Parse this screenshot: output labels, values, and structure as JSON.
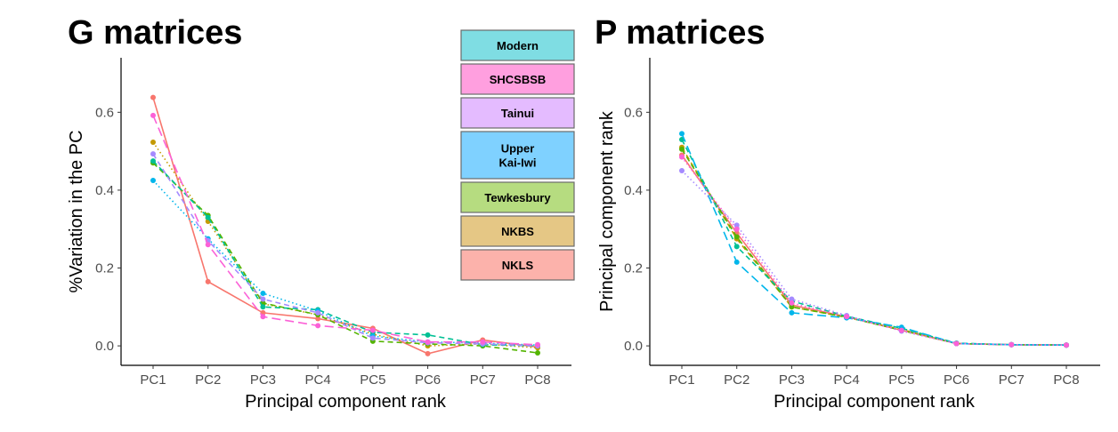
{
  "legend": {
    "entries": [
      {
        "label": "Modern",
        "color": "#7fdde3"
      },
      {
        "label": "SHCSBSB",
        "color": "#ff9fdf"
      },
      {
        "label": "Tainui",
        "color": "#e4bbff"
      },
      {
        "label": "Upper\nKai-Iwi",
        "color": "#7fd1ff"
      },
      {
        "label": "Tewkesbury",
        "color": "#b6dc80"
      },
      {
        "label": "NKBS",
        "color": "#e5c785"
      },
      {
        "label": "NKLS",
        "color": "#fcb2ab"
      }
    ]
  },
  "chart_data": [
    {
      "type": "line",
      "title": "G matrices",
      "xlabel": "Principal component rank",
      "ylabel": "%Variation in the PC",
      "categories": [
        "PC1",
        "PC2",
        "PC3",
        "PC4",
        "PC5",
        "PC6",
        "PC7",
        "PC8"
      ],
      "yticks": [
        "0.0",
        "0.2",
        "0.4",
        "0.6"
      ],
      "ylim": [
        -0.05,
        0.74
      ],
      "grid": false,
      "legend_position": "top-right",
      "series": [
        {
          "name": "NKLS",
          "color": "#f8766d",
          "dash": "solid",
          "values": [
            0.638,
            0.165,
            0.085,
            0.07,
            0.045,
            -0.02,
            0.015,
            -0.003
          ]
        },
        {
          "name": "NKBS",
          "color": "#c49a00",
          "dash": "dotted",
          "values": [
            0.523,
            0.32,
            0.108,
            0.08,
            0.03,
            0.0,
            0.005,
            -0.005
          ]
        },
        {
          "name": "Tewkesbury",
          "color": "#53b400",
          "dash": "dashed",
          "values": [
            0.47,
            0.335,
            0.11,
            0.08,
            0.012,
            0.005,
            0.0,
            -0.018
          ]
        },
        {
          "name": "Modern",
          "color": "#00c094",
          "dash": "dashed",
          "values": [
            0.475,
            0.33,
            0.1,
            0.093,
            0.035,
            0.028,
            0.003,
            0.0
          ]
        },
        {
          "name": "Upper Kai-Iwi",
          "color": "#00b6eb",
          "dash": "dotted",
          "values": [
            0.425,
            0.275,
            0.135,
            0.09,
            0.025,
            0.01,
            0.007,
            0.002
          ]
        },
        {
          "name": "Tainui",
          "color": "#a58aff",
          "dash": "dashed",
          "values": [
            0.493,
            0.27,
            0.12,
            0.085,
            0.02,
            0.008,
            0.005,
            0.0
          ]
        },
        {
          "name": "SHCSBSB",
          "color": "#fb61d7",
          "dash": "longdash",
          "values": [
            0.592,
            0.26,
            0.075,
            0.052,
            0.04,
            0.01,
            0.01,
            0.003
          ]
        }
      ]
    },
    {
      "type": "line",
      "title": "P matrices",
      "xlabel": "Principal component rank",
      "ylabel": "Principal component rank",
      "categories": [
        "PC1",
        "PC2",
        "PC3",
        "PC4",
        "PC5",
        "PC6",
        "PC7",
        "PC8"
      ],
      "yticks": [
        "0.0",
        "0.2",
        "0.4",
        "0.6"
      ],
      "ylim": [
        -0.05,
        0.74
      ],
      "grid": false,
      "series": [
        {
          "name": "NKLS",
          "color": "#f8766d",
          "dash": "solid",
          "values": [
            0.49,
            0.29,
            0.105,
            0.075,
            0.04,
            0.006,
            0.003,
            0.002
          ]
        },
        {
          "name": "NKBS",
          "color": "#c49a00",
          "dash": "dashed",
          "values": [
            0.51,
            0.275,
            0.1,
            0.073,
            0.042,
            0.006,
            0.003,
            0.002
          ]
        },
        {
          "name": "Tewkesbury",
          "color": "#53b400",
          "dash": "dashed",
          "values": [
            0.505,
            0.28,
            0.1,
            0.074,
            0.04,
            0.006,
            0.003,
            0.002
          ]
        },
        {
          "name": "Modern",
          "color": "#00c094",
          "dash": "dashed",
          "values": [
            0.53,
            0.255,
            0.115,
            0.076,
            0.045,
            0.007,
            0.003,
            0.002
          ]
        },
        {
          "name": "Upper Kai-Iwi",
          "color": "#00b6eb",
          "dash": "longdash",
          "values": [
            0.545,
            0.215,
            0.085,
            0.072,
            0.048,
            0.006,
            0.003,
            0.002
          ]
        },
        {
          "name": "Tainui",
          "color": "#a58aff",
          "dash": "dotted",
          "values": [
            0.45,
            0.31,
            0.12,
            0.078,
            0.038,
            0.006,
            0.003,
            0.002
          ]
        },
        {
          "name": "SHCSBSB",
          "color": "#fb61d7",
          "dash": "dotted",
          "values": [
            0.485,
            0.3,
            0.11,
            0.075,
            0.04,
            0.006,
            0.003,
            0.002
          ]
        }
      ]
    }
  ]
}
